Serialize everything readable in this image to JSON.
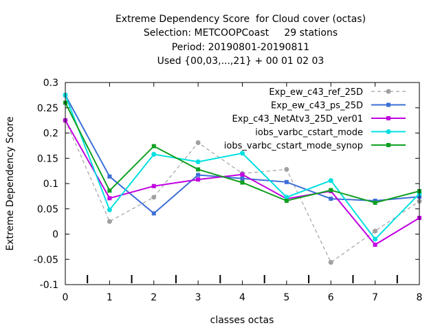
{
  "title_lines": [
    "Extreme Dependency Score  for Cloud cover (octas)",
    "Selection: METCOOPCoast     29 stations",
    "Period: 20190801-20190811",
    "Used {00,03,...,21} + 00 01 02 03"
  ],
  "chart_data": {
    "type": "line",
    "xlabel": "classes octas",
    "ylabel": "Extreme Dependency Score",
    "xlim": [
      0,
      8
    ],
    "ylim": [
      -0.1,
      0.3
    ],
    "x_ticks": [
      "0",
      "1",
      "2",
      "3",
      "4",
      "5",
      "6",
      "7",
      "8"
    ],
    "y_ticks": [
      "-0.1",
      "-0.05",
      "0",
      "0.05",
      "0.1",
      "0.15",
      "0.2",
      "0.25",
      "0.3"
    ],
    "grid": false,
    "legend_position": "top-right",
    "x": [
      0,
      1,
      2,
      3,
      4,
      5,
      6,
      7,
      8
    ],
    "series": [
      {
        "name": "Exp_ew_c43_ref_25D",
        "color": "#a0a0a0",
        "dash": true,
        "marker": "circle",
        "values": [
          0.225,
          0.025,
          0.073,
          0.181,
          0.12,
          0.128,
          -0.056,
          0.006,
          0.065
        ]
      },
      {
        "name": "Exp_ew_c43_ps_25D",
        "color": "#3c6fd6",
        "dash": false,
        "marker": "square",
        "values": [
          0.275,
          0.114,
          0.041,
          0.117,
          0.11,
          0.103,
          0.07,
          0.066,
          0.074
        ]
      },
      {
        "name": "Exp_c43_NetAtv3_25D_ver01",
        "color": "#c000e0",
        "dash": false,
        "marker": "square",
        "values": [
          0.225,
          0.071,
          0.095,
          0.108,
          0.118,
          0.07,
          0.085,
          -0.021,
          0.032
        ]
      },
      {
        "name": "iobs_varbc_cstart_mode",
        "color": "#00e0e0",
        "dash": false,
        "marker": "circle",
        "values": [
          0.275,
          0.048,
          0.158,
          0.143,
          0.16,
          0.073,
          0.106,
          -0.01,
          0.08
        ]
      },
      {
        "name": "iobs_varbc_cstart_mode_synop",
        "color": "#10a020",
        "dash": false,
        "marker": "square",
        "values": [
          0.26,
          0.086,
          0.174,
          0.128,
          0.102,
          0.066,
          0.087,
          0.062,
          0.085
        ]
      }
    ]
  }
}
